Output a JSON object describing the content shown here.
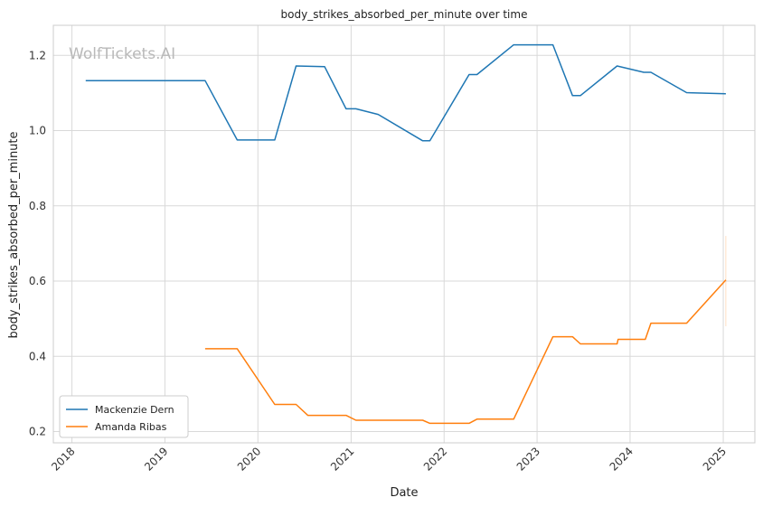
{
  "chart_data": {
    "type": "line",
    "title": "body_strikes_absorbed_per_minute over time",
    "xlabel": "Date",
    "ylabel": "body_strikes_absorbed_per_minute",
    "watermark": "WolfTickets.AI",
    "xlim": [
      "2017-10-20",
      "2025-05-05"
    ],
    "ylim": [
      0.17,
      1.28
    ],
    "x_ticks": [
      "2018",
      "2019",
      "2020",
      "2021",
      "2022",
      "2023",
      "2024",
      "2025"
    ],
    "y_ticks": [
      0.2,
      0.4,
      0.6,
      0.8,
      1.0,
      1.2
    ],
    "grid": true,
    "legend_position": "lower-left",
    "series": [
      {
        "name": "Mackenzie Dern",
        "color": "#1f77b4",
        "points": [
          [
            "2018-02-24",
            1.133
          ],
          [
            "2019-06-08",
            1.133
          ],
          [
            "2019-10-12",
            0.975
          ],
          [
            "2020-03-07",
            0.975
          ],
          [
            "2020-05-30",
            1.172
          ],
          [
            "2020-09-19",
            1.17
          ],
          [
            "2020-12-12",
            1.058
          ],
          [
            "2021-01-20",
            1.058
          ],
          [
            "2021-04-17",
            1.043
          ],
          [
            "2021-10-09",
            0.973
          ],
          [
            "2021-11-06",
            0.973
          ],
          [
            "2022-04-09",
            1.149
          ],
          [
            "2022-05-10",
            1.149
          ],
          [
            "2022-10-01",
            1.228
          ],
          [
            "2023-03-04",
            1.228
          ],
          [
            "2023-05-20",
            1.093
          ],
          [
            "2023-06-20",
            1.093
          ],
          [
            "2023-11-11",
            1.172
          ],
          [
            "2024-02-24",
            1.155
          ],
          [
            "2024-03-23",
            1.155
          ],
          [
            "2024-08-10",
            1.101
          ],
          [
            "2025-01-11",
            1.098
          ]
        ]
      },
      {
        "name": "Amanda Ribas",
        "color": "#ff7f0e",
        "points": [
          [
            "2019-06-08",
            0.42
          ],
          [
            "2019-10-12",
            0.42
          ],
          [
            "2020-03-07",
            0.272
          ],
          [
            "2020-05-30",
            0.272
          ],
          [
            "2020-07-15",
            0.243
          ],
          [
            "2020-12-12",
            0.243
          ],
          [
            "2021-01-20",
            0.23
          ],
          [
            "2021-10-09",
            0.23
          ],
          [
            "2021-11-06",
            0.222
          ],
          [
            "2022-04-09",
            0.222
          ],
          [
            "2022-05-10",
            0.233
          ],
          [
            "2022-10-01",
            0.233
          ],
          [
            "2023-03-04",
            0.452
          ],
          [
            "2023-05-20",
            0.452
          ],
          [
            "2023-06-20",
            0.433
          ],
          [
            "2023-11-11",
            0.433
          ],
          [
            "2023-11-15",
            0.445
          ],
          [
            "2024-03-01",
            0.445
          ],
          [
            "2024-03-23",
            0.488
          ],
          [
            "2024-08-10",
            0.488
          ],
          [
            "2025-01-11",
            0.603
          ]
        ],
        "error_band": {
          "x": "2025-01-11",
          "low": 0.48,
          "high": 0.72
        }
      }
    ]
  }
}
